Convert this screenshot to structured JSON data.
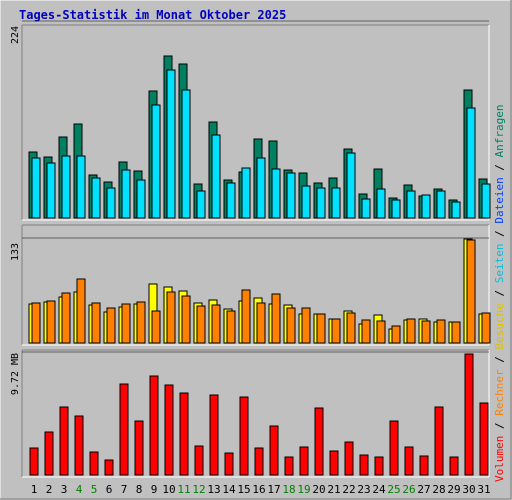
{
  "title": "Tages-Statistik im Monat Oktober 2025",
  "colors": {
    "title": "#0000c0",
    "background": "#c0c0c0",
    "frame": "#ffffff",
    "anfragen": "#008060",
    "dateien": "#0040ff",
    "seiten": "#00e0ff",
    "besuche": "#ffff00",
    "rechner": "#ff8000",
    "volumen": "#ff0000",
    "weekend": "#008000",
    "weekday": "#000000"
  },
  "right_labels": {
    "top": [
      {
        "text": "Anfragen",
        "color": "#008060"
      },
      {
        "text": " / ",
        "color": "#000000"
      },
      {
        "text": "Dateien",
        "color": "#0040ff"
      },
      {
        "text": " / ",
        "color": "#000000"
      },
      {
        "text": "Seiten",
        "color": "#00c0e0"
      },
      {
        "text": " / ",
        "color": "#000000"
      },
      {
        "text": "Besuche",
        "color": "#e0c000"
      },
      {
        "text": " / ",
        "color": "#000000"
      },
      {
        "text": "Rechner",
        "color": "#ff8000"
      },
      {
        "text": " / ",
        "color": "#000000"
      },
      {
        "text": "Volumen",
        "color": "#ff0000"
      }
    ]
  },
  "chart_data": [
    {
      "type": "bar",
      "panel": "top",
      "ylabel": "224",
      "ylim": [
        0,
        224
      ],
      "categories": [
        "1",
        "2",
        "3",
        "4",
        "5",
        "6",
        "7",
        "8",
        "9",
        "10",
        "11",
        "12",
        "13",
        "14",
        "15",
        "16",
        "17",
        "18",
        "19",
        "20",
        "21",
        "22",
        "23",
        "24",
        "25",
        "26",
        "27",
        "28",
        "29",
        "30",
        "31"
      ],
      "weekend_days": [
        4,
        5,
        11,
        12,
        18,
        19,
        25,
        26
      ],
      "series": [
        {
          "name": "Anfragen",
          "values": [
            75,
            69,
            92,
            107,
            49,
            41,
            64,
            53,
            144,
            184,
            175,
            39,
            109,
            43,
            52,
            90,
            88,
            55,
            51,
            40,
            46,
            79,
            27,
            56,
            23,
            38,
            25,
            33,
            21,
            145,
            44
          ]
        },
        {
          "name": "Dateien",
          "values": [
            68,
            62,
            70,
            70,
            45,
            34,
            55,
            43,
            128,
            168,
            145,
            31,
            94,
            40,
            57,
            68,
            56,
            51,
            36,
            34,
            34,
            74,
            22,
            33,
            20,
            31,
            26,
            31,
            18,
            125,
            39
          ]
        },
        {
          "name": "Seiten",
          "values": [
            68,
            62,
            70,
            70,
            45,
            34,
            55,
            43,
            128,
            168,
            145,
            31,
            94,
            40,
            57,
            68,
            56,
            51,
            36,
            34,
            34,
            74,
            22,
            33,
            20,
            31,
            26,
            31,
            18,
            125,
            39
          ]
        }
      ]
    },
    {
      "type": "bar",
      "panel": "middle",
      "ylabel": "133",
      "ylim": [
        0,
        133
      ],
      "categories": [
        "1",
        "2",
        "3",
        "4",
        "5",
        "6",
        "7",
        "8",
        "9",
        "10",
        "11",
        "12",
        "13",
        "14",
        "15",
        "16",
        "17",
        "18",
        "19",
        "20",
        "21",
        "22",
        "23",
        "24",
        "25",
        "26",
        "27",
        "28",
        "29",
        "30",
        "31"
      ],
      "series": [
        {
          "name": "Besuche",
          "values": [
            49,
            52,
            58,
            65,
            48,
            39,
            46,
            50,
            75,
            71,
            66,
            51,
            55,
            43,
            53,
            57,
            49,
            48,
            37,
            37,
            30,
            41,
            24,
            36,
            18,
            29,
            30,
            27,
            27,
            132,
            37
          ]
        },
        {
          "name": "Rechner",
          "values": [
            51,
            53,
            63,
            81,
            51,
            44,
            49,
            52,
            41,
            64,
            60,
            47,
            48,
            40,
            67,
            51,
            62,
            44,
            44,
            37,
            31,
            38,
            29,
            28,
            22,
            30,
            28,
            29,
            26,
            130,
            38
          ]
        }
      ]
    },
    {
      "type": "bar",
      "panel": "bottom",
      "ylabel": "9.72 MB",
      "ylim": [
        0,
        9.72
      ],
      "categories": [
        "1",
        "2",
        "3",
        "4",
        "5",
        "6",
        "7",
        "8",
        "9",
        "10",
        "11",
        "12",
        "13",
        "14",
        "15",
        "16",
        "17",
        "18",
        "19",
        "20",
        "21",
        "22",
        "23",
        "24",
        "25",
        "26",
        "27",
        "28",
        "29",
        "30",
        "31"
      ],
      "series": [
        {
          "name": "Volumen",
          "values": [
            2.1,
            3.4,
            5.4,
            4.7,
            1.8,
            1.2,
            7.2,
            4.3,
            7.8,
            7.1,
            6.5,
            2.3,
            6.3,
            1.7,
            6.2,
            2.1,
            3.9,
            1.4,
            2.2,
            5.3,
            1.9,
            2.6,
            1.6,
            1.4,
            4.3,
            2.2,
            1.5,
            5.4,
            1.4,
            9.6,
            5.7
          ]
        }
      ]
    }
  ]
}
